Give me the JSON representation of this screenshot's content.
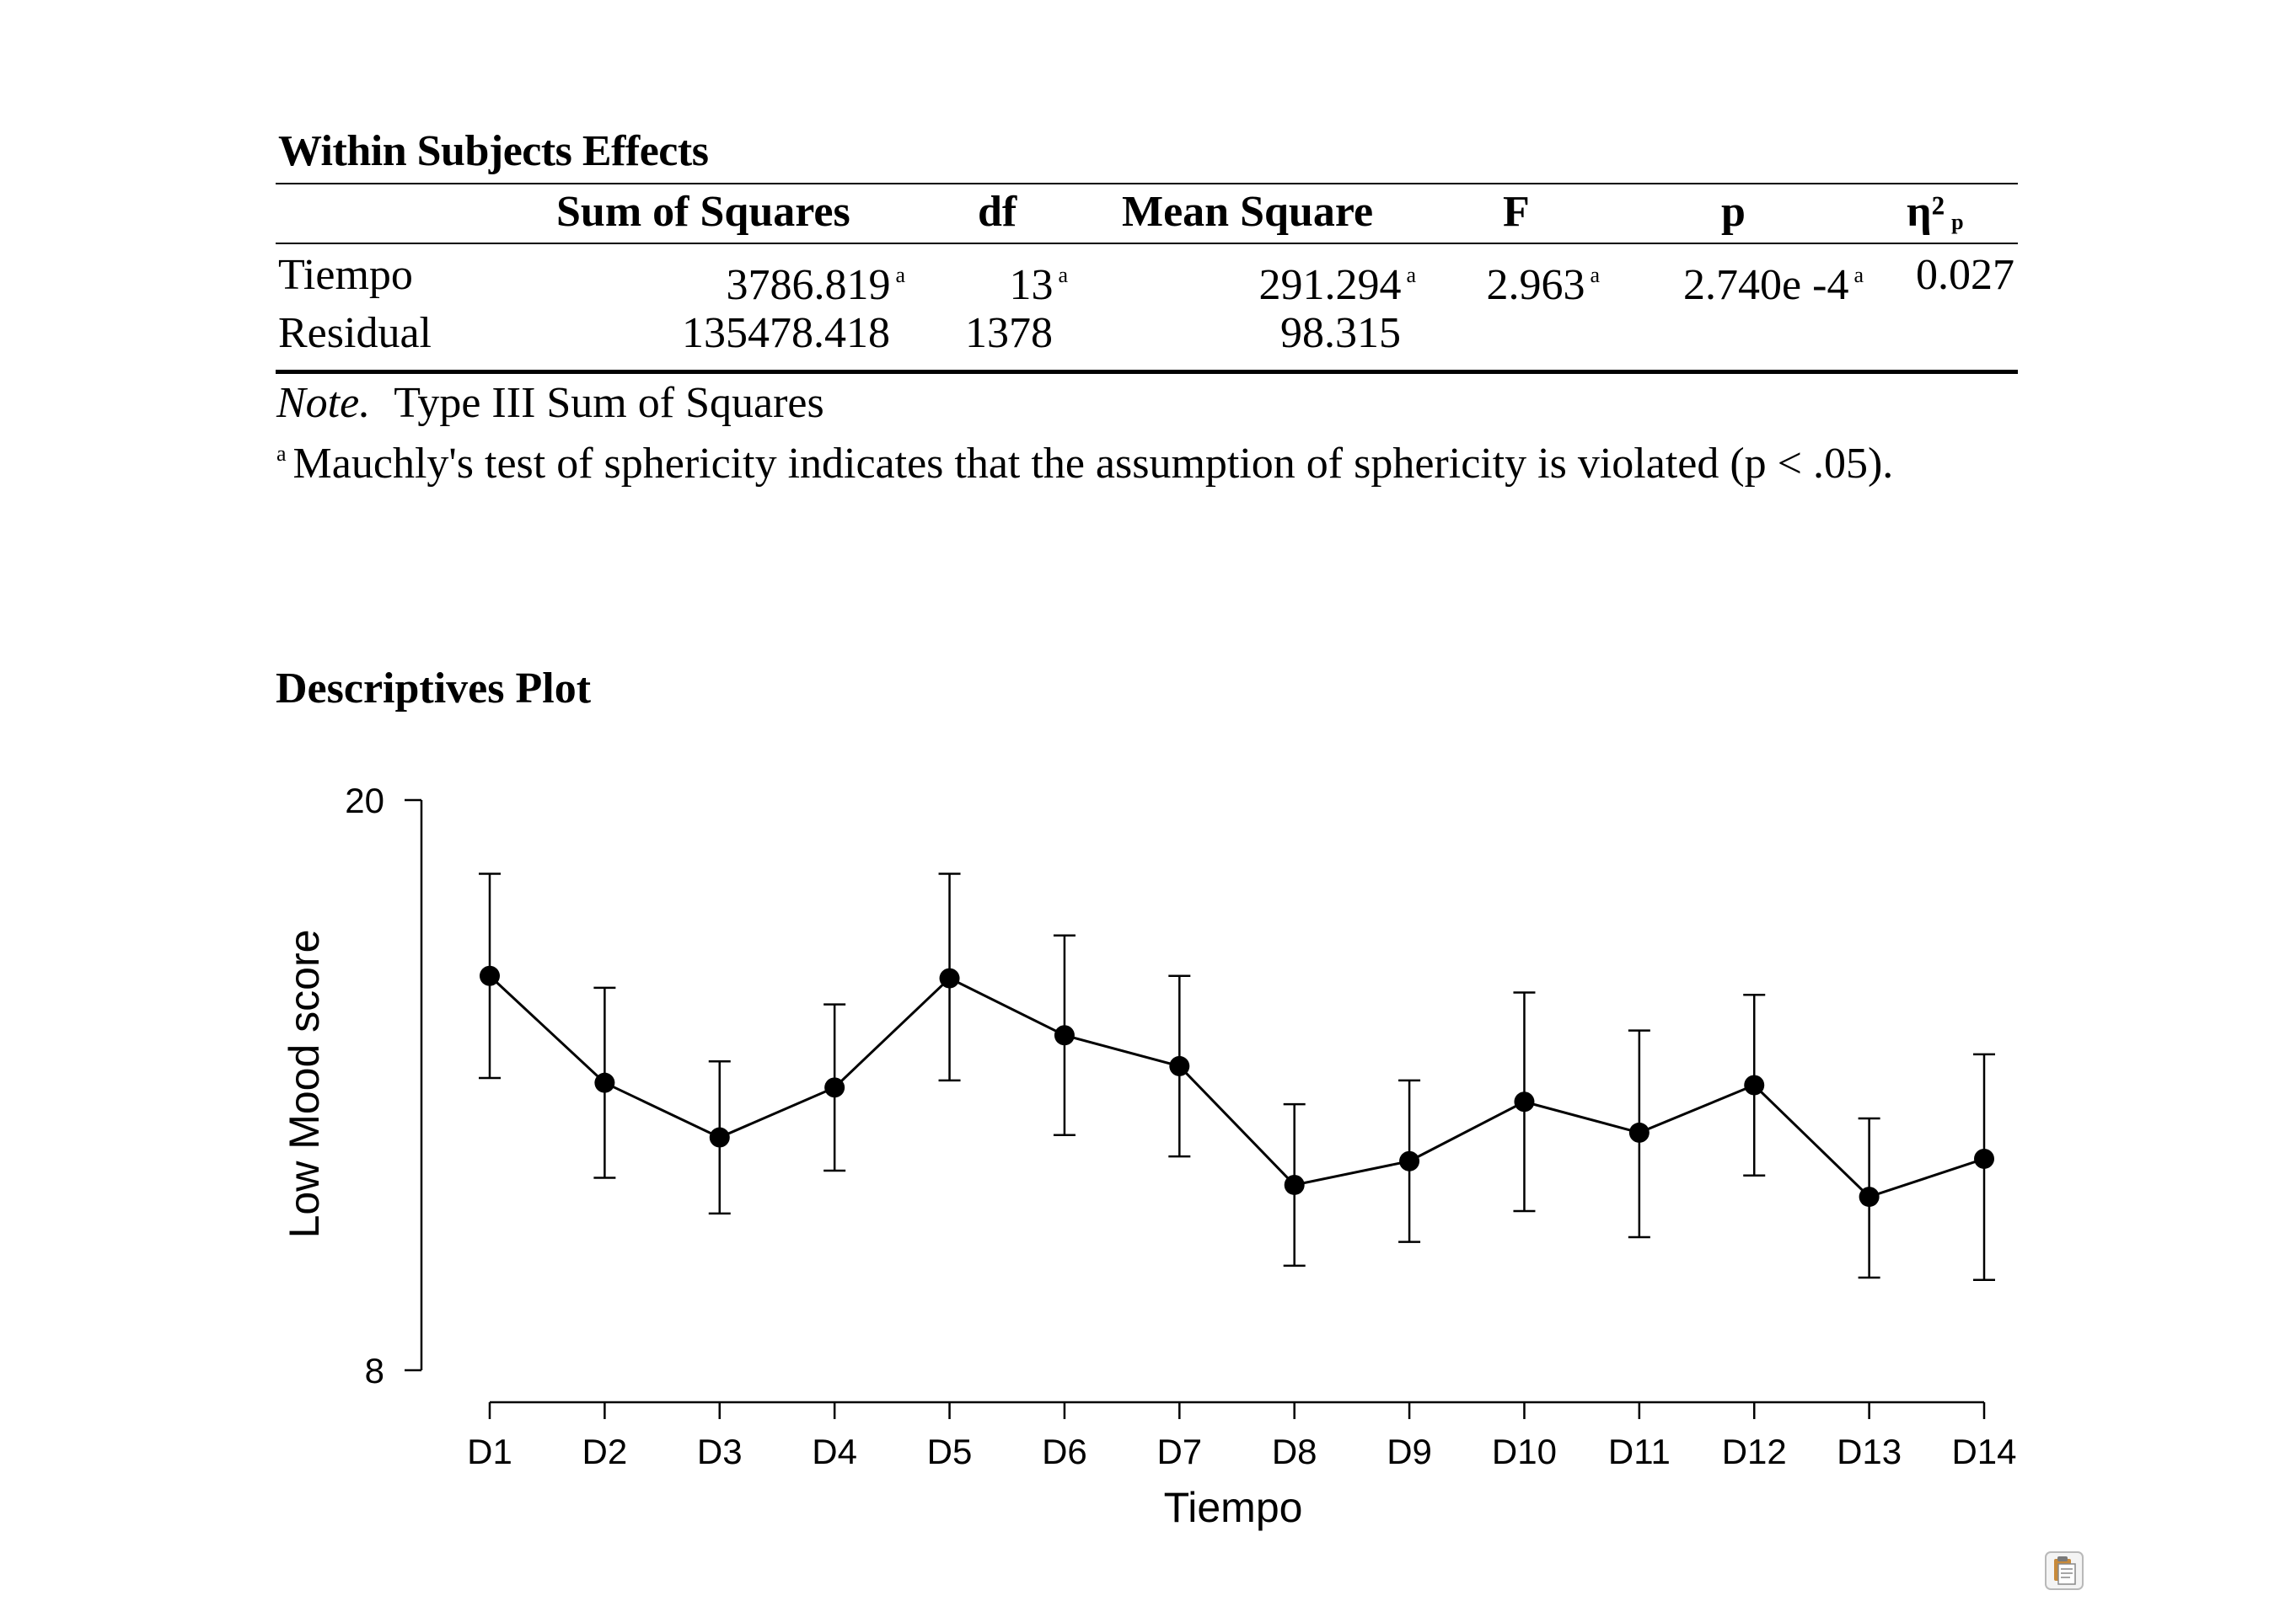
{
  "table": {
    "title": "Within Subjects Effects",
    "headers": {
      "sum_sq": "Sum of Squares",
      "df": "df",
      "mean_sq": "Mean Square",
      "F": "F",
      "p": "p",
      "eta": "η²",
      "eta_sub": "p"
    },
    "rows": [
      {
        "label": "Tiempo",
        "sum_sq": "3786.819",
        "df": "13",
        "mean_sq": "291.294",
        "F": "2.963",
        "p": "2.740e -4",
        "eta": "0.027",
        "footnote": "a"
      },
      {
        "label": "Residual",
        "sum_sq": "135478.418",
        "df": "1378",
        "mean_sq": "98.315",
        "F": "",
        "p": "",
        "eta": ""
      }
    ],
    "note_label": "Note.",
    "note_text": "Type III Sum of Squares",
    "footnote_mark": "a",
    "footnote_text": "Mauchly's test of sphericity indicates that the assumption of sphericity is violated (p < .05)."
  },
  "plot_title": "Descriptives Plot",
  "icons": {
    "clipboard": "clipboard-icon"
  },
  "chart_data": {
    "type": "line",
    "title": "Descriptives Plot",
    "xlabel": "Tiempo",
    "ylabel": "Low Mood score",
    "ylim": [
      8,
      20
    ],
    "yticks": [
      8,
      20
    ],
    "categories": [
      "D1",
      "D2",
      "D3",
      "D4",
      "D5",
      "D6",
      "D7",
      "D8",
      "D9",
      "D10",
      "D11",
      "D12",
      "D13",
      "D14"
    ],
    "series": [
      {
        "name": "Low Mood score",
        "values": [
          16.3,
          14.05,
          12.9,
          13.95,
          16.25,
          15.05,
          14.4,
          11.9,
          12.4,
          13.65,
          13.0,
          14.0,
          11.65,
          12.45
        ],
        "ci_lower": [
          14.15,
          12.05,
          11.3,
          12.2,
          14.1,
          12.95,
          12.5,
          10.2,
          10.7,
          11.35,
          10.8,
          12.1,
          9.95,
          9.9
        ],
        "ci_upper": [
          18.45,
          16.05,
          14.5,
          15.7,
          18.45,
          17.15,
          16.3,
          13.6,
          14.1,
          15.95,
          15.15,
          15.9,
          13.3,
          14.65
        ]
      }
    ],
    "grid": false
  }
}
